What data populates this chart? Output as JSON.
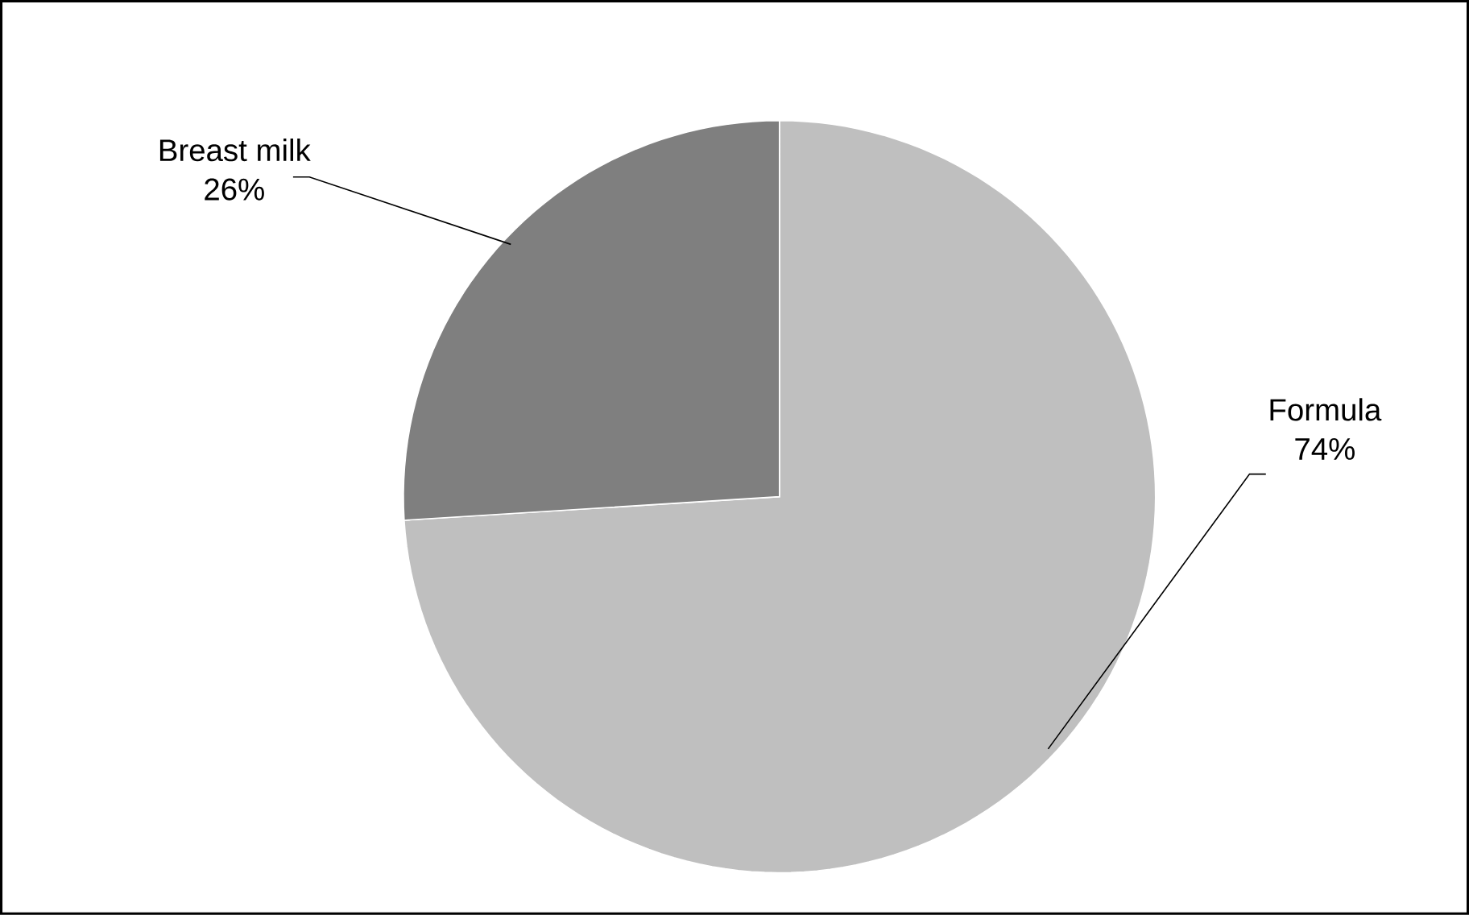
{
  "chart_data": {
    "type": "pie",
    "categories": [
      "Formula",
      "Breast milk"
    ],
    "values": [
      74,
      26
    ],
    "value_labels": [
      "74%",
      "26%"
    ],
    "colors": [
      "#bfbfbf",
      "#7f7f7f"
    ]
  }
}
